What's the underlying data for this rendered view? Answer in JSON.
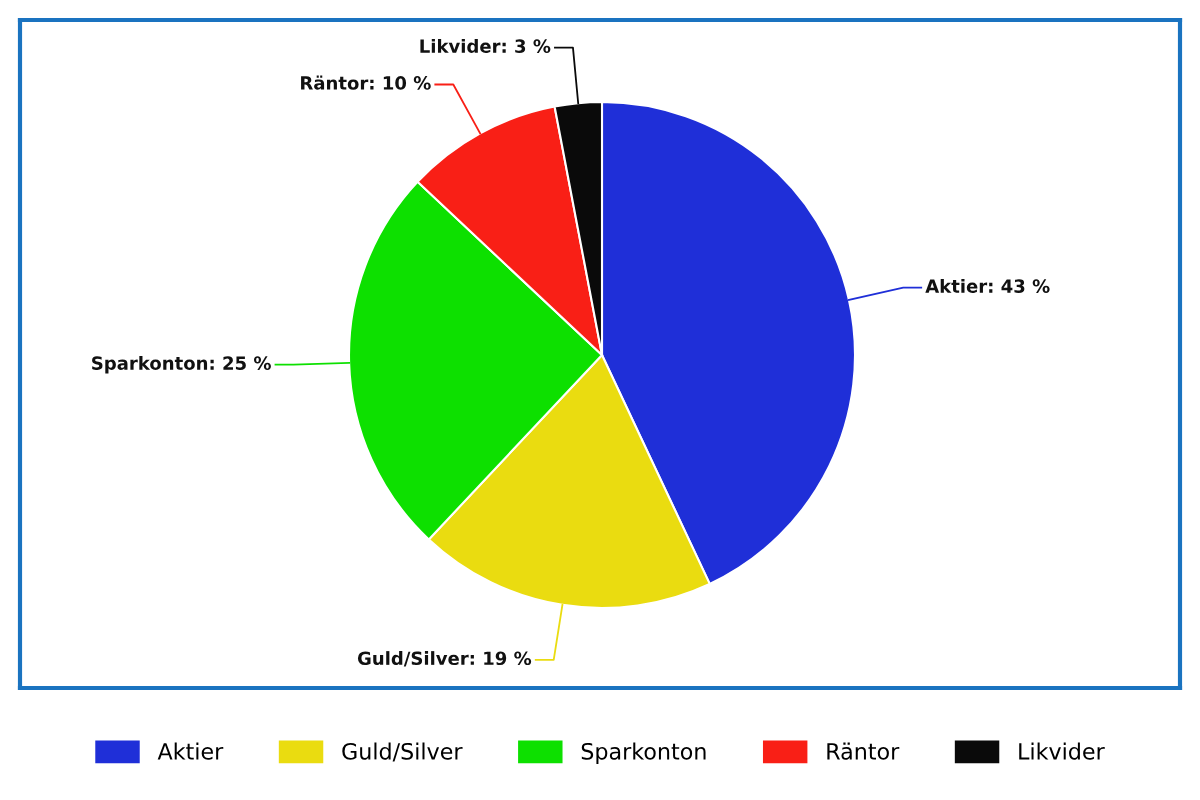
{
  "chart_data": {
    "type": "pie",
    "categories": [
      "Aktier",
      "Guld/Silver",
      "Sparkonton",
      "Räntor",
      "Likvider"
    ],
    "values": [
      43,
      19,
      25,
      10,
      3
    ],
    "colors": [
      "#1f2fd8",
      "#eadc10",
      "#0de000",
      "#f91f16",
      "#0a0a0a"
    ],
    "value_labels": [
      "Aktier: 43 %",
      "Guld/Silver: 19 %",
      "Sparkonton: 25 %",
      "Räntor: 10 %",
      "Likvider: 3 %"
    ],
    "legend": "bottom"
  }
}
